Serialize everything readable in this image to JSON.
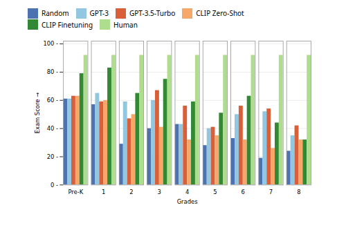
{
  "chart_data": {
    "type": "bar",
    "xlabel": "Grades",
    "ylabel": "Exam Score",
    "categories": [
      "Pre-K",
      "1",
      "2",
      "3",
      "4",
      "5",
      "6",
      "7",
      "8"
    ],
    "series": [
      {
        "name": "Random",
        "color": "#4C72B0",
        "values": [
          61,
          57,
          29,
          40,
          43,
          28,
          33,
          19,
          24
        ]
      },
      {
        "name": "GPT-3",
        "color": "#93C6E0",
        "values": [
          61,
          65,
          59,
          60,
          43,
          40,
          50,
          52,
          35
        ]
      },
      {
        "name": "GPT-3.5-Turbo",
        "color": "#D95F39",
        "values": [
          63,
          59,
          47,
          67,
          56,
          41,
          56,
          54,
          42
        ]
      },
      {
        "name": "CLIP Zero-Shot",
        "color": "#F5A86A",
        "values": [
          63,
          60,
          50,
          41,
          32,
          35,
          32,
          26,
          32
        ]
      },
      {
        "name": "CLIP Finetuning",
        "color": "#338833",
        "values": [
          79,
          83,
          65,
          75,
          59,
          51,
          63,
          44,
          32
        ]
      },
      {
        "name": "Human",
        "color": "#AEDD8E",
        "values": [
          92,
          92,
          92,
          92,
          92,
          92,
          92,
          92,
          92
        ]
      }
    ],
    "ylim": [
      0,
      102
    ],
    "yticks": [
      {
        "value": 0,
        "label": "0 -"
      },
      {
        "value": 20,
        "label": "20 -"
      },
      {
        "value": 40,
        "label": "40 -"
      },
      {
        "value": 60,
        "label": "60 -"
      },
      {
        "value": 80,
        "label": "80 -"
      },
      {
        "value": 100,
        "label": "100 -"
      }
    ],
    "grid": true,
    "legend": "top"
  }
}
